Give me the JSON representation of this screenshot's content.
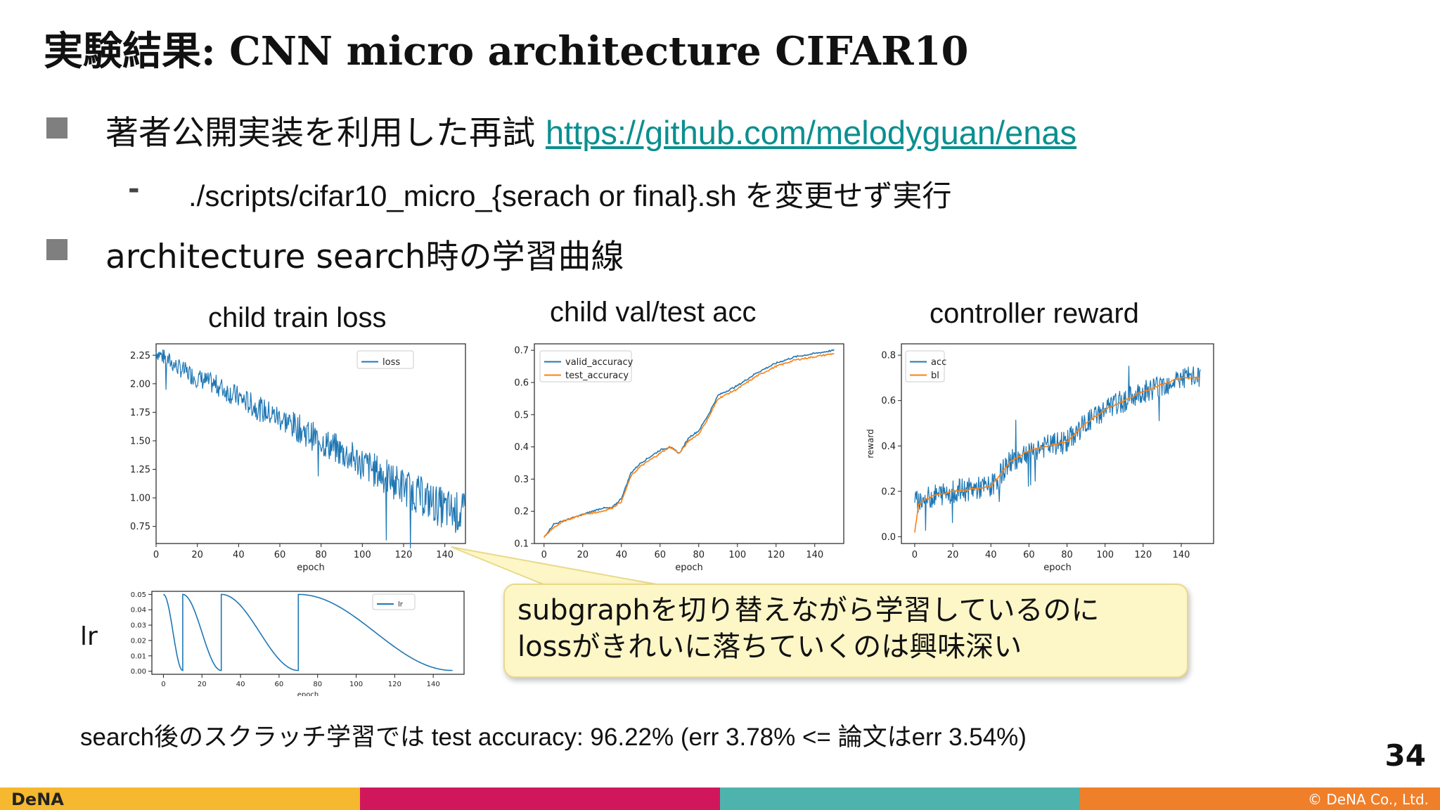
{
  "slide": {
    "title": "実験結果: CNN micro architecture CIFAR10",
    "bullet1_text": "著者公開実装を利用した再試 ",
    "bullet1_link": "https://github.com/melodyguan/enas",
    "sub_bullet_marker": "-",
    "sub_bullet": "./scripts/cifar10_micro_{serach or final}.sh を変更せず実行",
    "bullet2": "architecture search時の学習曲線",
    "callout_line1": "subgraphを切り替えながら学習しているのに",
    "callout_line2": "lossがきれいに落ちていくのは興味深い",
    "bottom_note": "search後のスクラッチ学習では test accuracy: 96.22% (err 3.78% <= 論文はerr 3.54%)",
    "lr_label": "lr",
    "page_number": "34",
    "logo": "DeNA",
    "copyright": "© DeNA Co., Ltd."
  },
  "colors": {
    "series_blue": "#1f77b4",
    "series_orange": "#ff7f0e",
    "link": "#0b8f8f",
    "footer": [
      "#f5b82e",
      "#d0175c",
      "#4fb3ad",
      "#f07f2a"
    ],
    "callout_bg": "#fdf6c7"
  },
  "chart_data": [
    {
      "caption": "child train loss",
      "type": "line",
      "xlabel": "epoch",
      "ylabel": "",
      "xlim": [
        0,
        150
      ],
      "ylim": [
        0.6,
        2.35
      ],
      "xticks": [
        0,
        20,
        40,
        60,
        80,
        100,
        120,
        140
      ],
      "yticks": [
        0.75,
        1.0,
        1.25,
        1.5,
        1.75,
        2.0,
        2.25
      ],
      "ytick_labels": [
        "0.75",
        "1.00",
        "1.25",
        "1.50",
        "1.75",
        "2.00",
        "2.25"
      ],
      "legend": "top-right",
      "series": [
        {
          "name": "loss",
          "color": "#1f77b4",
          "noisy": true,
          "x": [
            0,
            10,
            20,
            30,
            40,
            50,
            60,
            70,
            80,
            90,
            100,
            110,
            120,
            130,
            140,
            150
          ],
          "y": [
            2.28,
            2.15,
            2.05,
            1.98,
            1.88,
            1.78,
            1.7,
            1.6,
            1.5,
            1.4,
            1.3,
            1.2,
            1.1,
            1.0,
            0.9,
            0.85
          ]
        }
      ]
    },
    {
      "caption": "child val/test acc",
      "type": "line",
      "xlabel": "epoch",
      "ylabel": "",
      "xlim": [
        -5,
        155
      ],
      "ylim": [
        0.1,
        0.72
      ],
      "xticks": [
        0,
        20,
        40,
        60,
        80,
        100,
        120,
        140
      ],
      "yticks": [
        0.1,
        0.2,
        0.3,
        0.4,
        0.5,
        0.6,
        0.7
      ],
      "ytick_labels": [
        "0.1",
        "0.2",
        "0.3",
        "0.4",
        "0.5",
        "0.6",
        "0.7"
      ],
      "legend": "top-left",
      "series": [
        {
          "name": "valid_accuracy",
          "color": "#1f77b4",
          "x": [
            0,
            5,
            10,
            20,
            30,
            35,
            40,
            45,
            50,
            60,
            65,
            70,
            75,
            80,
            85,
            90,
            100,
            110,
            120,
            130,
            140,
            150
          ],
          "y": [
            0.12,
            0.16,
            0.17,
            0.19,
            0.21,
            0.21,
            0.24,
            0.32,
            0.35,
            0.39,
            0.4,
            0.38,
            0.43,
            0.45,
            0.5,
            0.56,
            0.59,
            0.63,
            0.66,
            0.68,
            0.69,
            0.7
          ]
        },
        {
          "name": "test_accuracy",
          "color": "#ff7f0e",
          "x": [
            0,
            5,
            10,
            20,
            30,
            35,
            40,
            45,
            50,
            60,
            65,
            70,
            75,
            80,
            85,
            90,
            100,
            110,
            120,
            130,
            140,
            150
          ],
          "y": [
            0.12,
            0.15,
            0.17,
            0.19,
            0.2,
            0.21,
            0.23,
            0.31,
            0.34,
            0.38,
            0.4,
            0.38,
            0.42,
            0.44,
            0.49,
            0.55,
            0.58,
            0.62,
            0.65,
            0.67,
            0.68,
            0.69
          ]
        }
      ]
    },
    {
      "caption": "controller reward",
      "type": "line",
      "xlabel": "epoch",
      "ylabel": "reward",
      "xlim": [
        -7,
        157
      ],
      "ylim": [
        -0.03,
        0.85
      ],
      "xticks": [
        0,
        20,
        40,
        60,
        80,
        100,
        120,
        140
      ],
      "yticks": [
        0.0,
        0.2,
        0.4,
        0.6,
        0.8
      ],
      "ytick_labels": [
        "0.0",
        "0.2",
        "0.4",
        "0.6",
        "0.8"
      ],
      "legend": "top-left",
      "series": [
        {
          "name": "acc",
          "color": "#1f77b4",
          "noisy": true,
          "x": [
            0,
            10,
            20,
            30,
            40,
            50,
            60,
            70,
            80,
            90,
            100,
            110,
            120,
            130,
            140,
            150
          ],
          "y": [
            0.15,
            0.18,
            0.2,
            0.21,
            0.22,
            0.33,
            0.38,
            0.4,
            0.42,
            0.5,
            0.56,
            0.6,
            0.64,
            0.67,
            0.7,
            0.7
          ]
        },
        {
          "name": "bl",
          "color": "#ff7f0e",
          "x": [
            0,
            2,
            5,
            10,
            20,
            30,
            40,
            50,
            60,
            70,
            80,
            90,
            100,
            110,
            120,
            130,
            140,
            150
          ],
          "y": [
            0.02,
            0.14,
            0.16,
            0.18,
            0.2,
            0.21,
            0.22,
            0.33,
            0.38,
            0.4,
            0.42,
            0.5,
            0.56,
            0.6,
            0.64,
            0.67,
            0.7,
            0.7
          ]
        }
      ]
    },
    {
      "caption": "lr",
      "type": "line",
      "xlabel": "epoch",
      "ylabel": "",
      "xlim": [
        -6,
        156
      ],
      "ylim": [
        -0.002,
        0.052
      ],
      "xticks": [
        0,
        20,
        40,
        60,
        80,
        100,
        120,
        140
      ],
      "yticks": [
        0.0,
        0.01,
        0.02,
        0.03,
        0.04,
        0.05
      ],
      "ytick_labels": [
        "0.00",
        "0.01",
        "0.02",
        "0.03",
        "0.04",
        "0.05"
      ],
      "legend": "top-right",
      "series": [
        {
          "name": "lr",
          "color": "#1f77b4",
          "x": [
            0,
            10,
            10.01,
            30,
            30.01,
            70,
            70.01,
            150
          ],
          "y": [
            0.05,
            0.0005,
            0.05,
            0.0005,
            0.05,
            0.0005,
            0.05,
            0.0005
          ],
          "cosine_restarts": [
            0,
            10,
            30,
            70,
            150
          ]
        }
      ]
    }
  ]
}
